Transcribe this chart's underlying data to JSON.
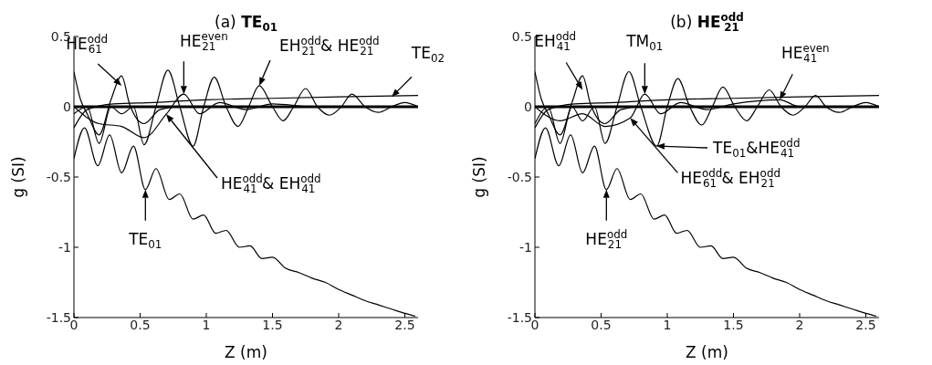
{
  "chart_data": [
    {
      "type": "line",
      "title": "(a) TE$_{01}$",
      "xlabel": "Z (m)",
      "ylabel": "g (SI)",
      "xlim": [
        0,
        2.6
      ],
      "xticks": [
        0,
        0.5,
        1,
        1.5,
        2,
        2.5
      ],
      "ylim": [
        -1.5,
        0.5
      ],
      "yticks": [
        -1.5,
        -1,
        -0.5,
        0,
        0.5
      ],
      "series": [
        {
          "color": "#000000",
          "x": [
            0,
            0.08,
            0.18,
            0.27,
            0.36,
            0.45,
            0.54,
            0.62,
            0.72,
            0.8,
            0.9,
            0.98,
            1.07,
            1.15,
            1.25,
            1.33,
            1.42,
            1.5,
            1.6,
            1.7,
            1.8,
            1.9,
            2.0,
            2.1,
            2.2,
            2.3,
            2.4,
            2.5,
            2.58
          ],
          "values": [
            -0.37,
            -0.15,
            -0.42,
            -0.2,
            -0.47,
            -0.28,
            -0.59,
            -0.44,
            -0.66,
            -0.62,
            -0.8,
            -0.77,
            -0.9,
            -0.88,
            -1.0,
            -0.99,
            -1.08,
            -1.07,
            -1.15,
            -1.18,
            -1.22,
            -1.25,
            -1.3,
            -1.34,
            -1.38,
            -1.41,
            -1.44,
            -1.47,
            -1.49
          ]
        },
        {
          "color": "#000000",
          "x": [
            0,
            0.1,
            0.19,
            0.28,
            0.36,
            0.45,
            0.53,
            0.62,
            0.71,
            0.8,
            0.9,
            0.98,
            1.06,
            1.15,
            1.24,
            1.32,
            1.4,
            1.5,
            1.58,
            1.66,
            1.75,
            1.84,
            1.93,
            2.02,
            2.1,
            2.2,
            2.3,
            2.4,
            2.5,
            2.6
          ],
          "values": [
            -0.05,
            0.0,
            -0.26,
            0.0,
            -0.05,
            0.0,
            -0.27,
            0.0,
            0.26,
            0.0,
            -0.28,
            0.0,
            0.21,
            0.0,
            -0.14,
            0.0,
            0.15,
            0.0,
            -0.1,
            0.0,
            0.13,
            0.0,
            -0.06,
            0.0,
            0.09,
            0.0,
            -0.04,
            0.0,
            0.03,
            0.0
          ]
        },
        {
          "color": "#000000",
          "x": [
            0,
            0.05,
            0.1,
            0.19,
            0.28,
            0.36,
            0.42,
            0.53,
            0.65,
            0.8,
            1.0,
            1.5,
            2.0,
            2.6
          ],
          "values": [
            0.25,
            0.05,
            -0.05,
            -0.2,
            0.05,
            0.22,
            0.02,
            -0.12,
            -0.02,
            0.0,
            0.0,
            0.0,
            0.0,
            0.0
          ]
        },
        {
          "color": "#000000",
          "x": [
            0,
            0.19,
            0.36,
            0.53,
            0.7,
            0.83,
            0.95,
            1.1,
            1.3,
            1.5,
            1.8,
            2.6
          ],
          "values": [
            0.0,
            -0.12,
            -0.14,
            -0.22,
            -0.05,
            0.09,
            -0.05,
            0.03,
            -0.02,
            0.02,
            0.0,
            0.0
          ]
        },
        {
          "color": "#000000",
          "x": [
            0,
            0.1,
            0.3,
            0.6,
            1.0,
            1.5,
            2.0,
            2.6
          ],
          "values": [
            -0.15,
            -0.02,
            0.02,
            0.03,
            0.05,
            0.06,
            0.07,
            0.08
          ]
        },
        {
          "color": "#000000",
          "x": [
            0,
            2.6
          ],
          "values": [
            0.0,
            0.0
          ]
        }
      ],
      "annotations": [
        {
          "text": "HE$^{odd}$$_{61}$",
          "x": 0.36,
          "y": 0.15
        },
        {
          "text": "HE$^{even}$$_{21}$",
          "x": 0.83,
          "y": 0.09
        },
        {
          "text": "EH$^{odd}$$_{21}$ & HE$^{odd}$$_{21}$",
          "x": 1.4,
          "y": 0.15
        },
        {
          "text": "TE$_{02}$",
          "x": 2.4,
          "y": 0.07
        },
        "HE$^{odd}$$_{41}$ & EH$^{odd}$$_{41}$",
        {
          "text": "TE$_{01}$",
          "x": 0.54,
          "y": -0.59
        }
      ]
    },
    {
      "type": "line",
      "title": "(b) HE$^{odd}$$_{21}$",
      "xlabel": "Z (m)",
      "ylabel": "g (SI)",
      "xlim": [
        0,
        2.6
      ],
      "xticks": [
        0,
        0.5,
        1,
        1.5,
        2,
        2.5
      ],
      "ylim": [
        -1.5,
        0.5
      ],
      "yticks": [
        -1.5,
        -1,
        -0.5,
        0,
        0.5
      ],
      "series": [
        {
          "color": "#000000",
          "x": [
            0,
            0.08,
            0.18,
            0.27,
            0.36,
            0.45,
            0.54,
            0.62,
            0.72,
            0.8,
            0.9,
            0.98,
            1.07,
            1.15,
            1.25,
            1.33,
            1.42,
            1.5,
            1.6,
            1.7,
            1.8,
            1.9,
            2.0,
            2.1,
            2.2,
            2.3,
            2.4,
            2.5,
            2.58
          ],
          "values": [
            -0.37,
            -0.15,
            -0.42,
            -0.2,
            -0.47,
            -0.28,
            -0.59,
            -0.44,
            -0.66,
            -0.62,
            -0.8,
            -0.77,
            -0.9,
            -0.88,
            -1.0,
            -0.99,
            -1.08,
            -1.07,
            -1.15,
            -1.18,
            -1.22,
            -1.25,
            -1.3,
            -1.34,
            -1.38,
            -1.41,
            -1.44,
            -1.47,
            -1.49
          ]
        },
        {
          "color": "#000000",
          "x": [
            0,
            0.1,
            0.19,
            0.28,
            0.36,
            0.45,
            0.53,
            0.62,
            0.71,
            0.8,
            0.92,
            1.0,
            1.08,
            1.17,
            1.26,
            1.34,
            1.42,
            1.51,
            1.6,
            1.68,
            1.77,
            1.86,
            1.95,
            2.04,
            2.12,
            2.2,
            2.3,
            2.4,
            2.5,
            2.6
          ],
          "values": [
            -0.12,
            0.0,
            -0.26,
            0.0,
            -0.1,
            0.0,
            -0.26,
            0.0,
            0.25,
            0.0,
            -0.28,
            0.0,
            0.2,
            0.0,
            -0.13,
            0.0,
            0.14,
            0.0,
            -0.1,
            0.0,
            0.12,
            0.0,
            -0.06,
            0.0,
            0.08,
            0.0,
            -0.04,
            0.0,
            0.03,
            0.0
          ]
        },
        {
          "color": "#000000",
          "x": [
            0,
            0.05,
            0.1,
            0.19,
            0.28,
            0.36,
            0.42,
            0.53,
            0.65,
            0.8,
            1.0,
            1.5,
            2.0,
            2.6
          ],
          "values": [
            0.25,
            0.05,
            -0.05,
            -0.2,
            0.03,
            0.22,
            0.02,
            -0.12,
            -0.02,
            0.0,
            0.0,
            0.0,
            0.0,
            0.0
          ]
        },
        {
          "color": "#000000",
          "x": [
            0,
            0.19,
            0.36,
            0.53,
            0.72,
            0.83,
            0.95,
            1.1,
            1.3,
            1.5,
            1.85,
            2.0,
            2.6
          ],
          "values": [
            0.0,
            -0.1,
            -0.05,
            -0.14,
            -0.08,
            0.09,
            -0.05,
            0.03,
            -0.02,
            0.02,
            0.05,
            0.0,
            0.0
          ]
        },
        {
          "color": "#000000",
          "x": [
            0,
            0.1,
            0.3,
            0.6,
            1.0,
            1.5,
            2.0,
            2.6
          ],
          "values": [
            -0.15,
            -0.02,
            0.02,
            0.03,
            0.05,
            0.06,
            0.07,
            0.08
          ]
        },
        {
          "color": "#000000",
          "x": [
            0,
            2.6
          ],
          "values": [
            0.0,
            0.0
          ]
        }
      ],
      "annotations": [
        {
          "text": "EH$^{odd}$$_{41}$",
          "x": 0.36,
          "y": 0.12
        },
        {
          "text": "TM$_{01}$",
          "x": 0.83,
          "y": 0.09
        },
        {
          "text": "HE$^{even}$$_{41}$",
          "x": 1.85,
          "y": 0.05
        },
        "TE$_{01}$&HE$^{odd}$$_{41}$",
        {
          "text": "HE$^{odd}$$_{61}$ & EH$^{odd}$$_{21}$",
          "x": 0.72,
          "y": -0.08
        },
        {
          "text": "HE$^{odd}$$_{21}$",
          "x": 0.54,
          "y": -0.59
        }
      ]
    }
  ]
}
